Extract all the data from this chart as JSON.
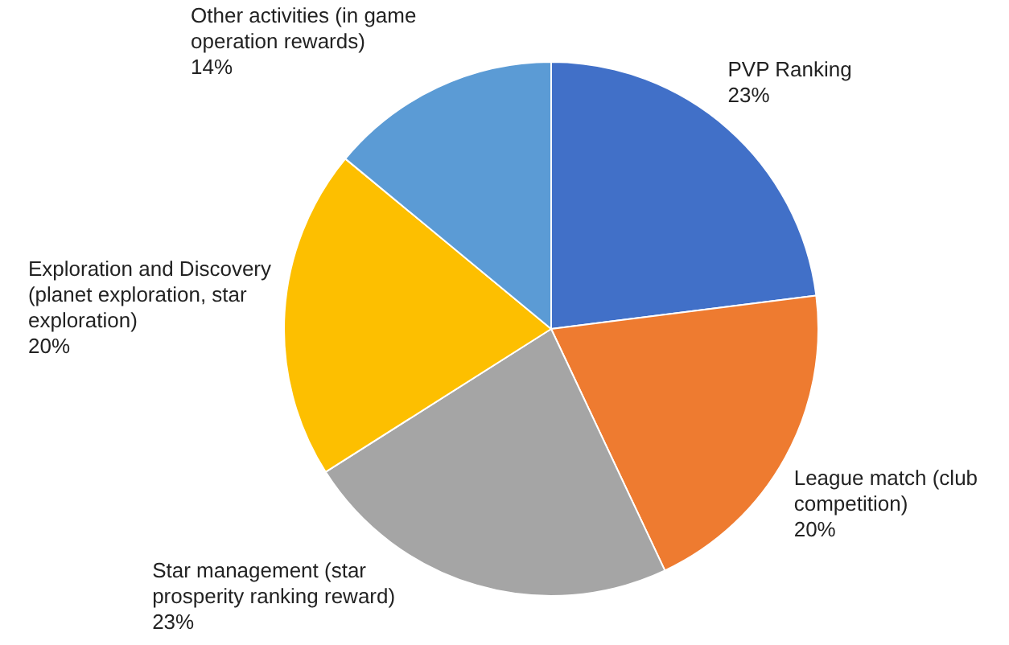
{
  "chart_data": {
    "type": "pie",
    "categories": [
      "PVP Ranking",
      "League match (club competition)",
      "Star management (star prosperity ranking reward)",
      "Exploration and Discovery (planet exploration, star exploration)",
      "Other activities (in game operation rewards)"
    ],
    "values": [
      23,
      20,
      23,
      20,
      14
    ],
    "value_labels": [
      "23%",
      "20%",
      "23%",
      "20%",
      "14%"
    ],
    "colors": [
      "#4170c8",
      "#ee7b30",
      "#a5a5a5",
      "#fdbf00",
      "#5b9bd5"
    ]
  }
}
